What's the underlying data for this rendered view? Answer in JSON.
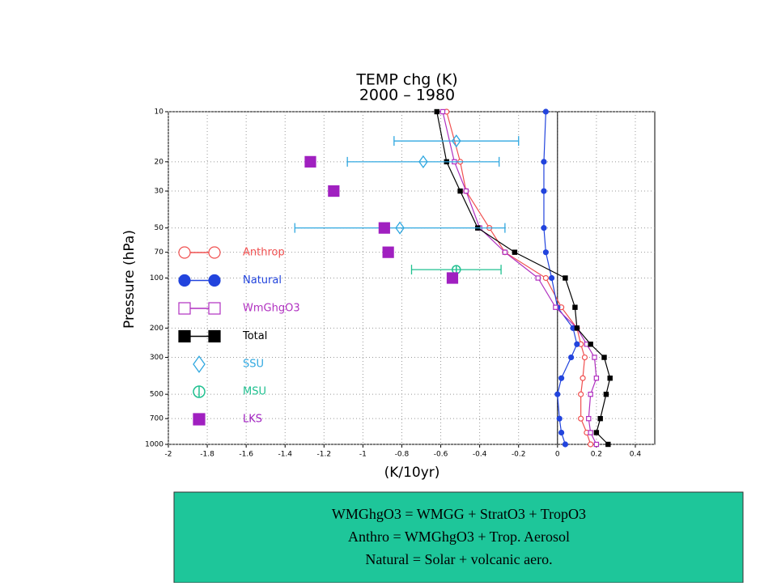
{
  "chart_data": {
    "type": "line",
    "title": "TEMP chg (K)",
    "subtitle": "2000 – 1980",
    "xlabel": "(K/10yr)",
    "ylabel": "Pressure (hPa)",
    "xlim": [
      -2,
      0.5
    ],
    "xticks": [
      -2,
      -1.8,
      -1.6,
      -1.4,
      -1.2,
      -1,
      -0.8,
      -0.6,
      -0.4,
      -0.2,
      0,
      0.2,
      0.4
    ],
    "ylim": [
      1000,
      10
    ],
    "ylog": true,
    "yticks": [
      10,
      20,
      30,
      50,
      70,
      100,
      200,
      300,
      500,
      700,
      1000
    ],
    "grid": true,
    "y": [
      10,
      20,
      30,
      50,
      70,
      100,
      150,
      200,
      250,
      300,
      400,
      500,
      700,
      850,
      1000
    ],
    "series": [
      {
        "name": "Anthrop",
        "color": "#f05050",
        "marker": "open-circle",
        "values": [
          -0.57,
          -0.5,
          -0.47,
          -0.35,
          -0.27,
          -0.06,
          0.02,
          0.1,
          0.12,
          0.14,
          0.13,
          0.12,
          0.12,
          0.15,
          0.17
        ]
      },
      {
        "name": "Natural",
        "color": "#2244dd",
        "marker": "circle",
        "values": [
          -0.06,
          -0.07,
          -0.07,
          -0.07,
          -0.06,
          -0.03,
          0,
          0.08,
          0.1,
          0.07,
          0.02,
          0,
          0.01,
          0.02,
          0.04
        ]
      },
      {
        "name": "WmGhgO3",
        "color": "#b030c0",
        "marker": "open-square",
        "values": [
          -0.59,
          -0.53,
          -0.47,
          -0.4,
          -0.27,
          -0.1,
          -0.01,
          0.1,
          0.15,
          0.19,
          0.2,
          0.17,
          0.16,
          0.17,
          0.2
        ]
      },
      {
        "name": "Total",
        "color": "#000000",
        "marker": "square",
        "values": [
          -0.62,
          -0.57,
          -0.5,
          -0.41,
          -0.22,
          0.04,
          0.09,
          0.1,
          0.17,
          0.24,
          0.27,
          0.25,
          0.22,
          0.2,
          0.26
        ]
      }
    ],
    "observations": [
      {
        "name": "SSU",
        "color": "#30a8e0",
        "marker": "diamond",
        "y": [
          15,
          20,
          50
        ],
        "values": [
          -0.52,
          -0.69,
          -0.81
        ],
        "errors": [
          0.32,
          0.39,
          0.54
        ]
      },
      {
        "name": "MSU",
        "color": "#20c090",
        "marker": "split-circle",
        "y": [
          89
        ],
        "values": [
          -0.52
        ],
        "errors": [
          0.23
        ]
      },
      {
        "name": "LKS",
        "color": "#a020c0",
        "marker": "square",
        "y": [
          20,
          30,
          50,
          70,
          100
        ],
        "values": [
          -1.27,
          -1.15,
          -0.89,
          -0.87,
          -0.54
        ]
      }
    ],
    "notes": [
      "WMGhgO3 = WMGG + StratO3 + TropO3",
      "Anthro = WMGhgO3 + Trop. Aerosol",
      "Natural = Solar + volcanic aero."
    ]
  }
}
